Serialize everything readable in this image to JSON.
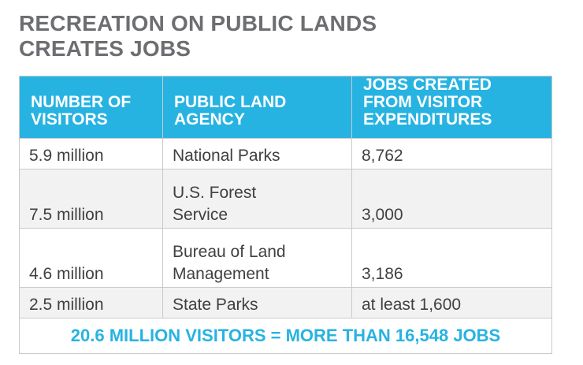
{
  "title": {
    "line1": "RECREATION ON PUBLIC LANDS",
    "line2": "CREATES JOBS"
  },
  "columns": [
    {
      "line1": "NUMBER OF",
      "line2": "VISITORS"
    },
    {
      "line1": "PUBLIC LAND",
      "line2": "AGENCY"
    },
    {
      "line1": "JOBS CREATED",
      "line2": "FROM VISITOR",
      "line3": "EXPENDITURES"
    }
  ],
  "rows": [
    {
      "visitors": "5.9 million",
      "agency": [
        "National Parks"
      ],
      "jobs": "8,762"
    },
    {
      "visitors": "7.5 million",
      "agency": [
        "U.S. Forest",
        "Service"
      ],
      "jobs": "3,000"
    },
    {
      "visitors": "4.6 million",
      "agency": [
        "Bureau of Land",
        "Management"
      ],
      "jobs": "3,186"
    },
    {
      "visitors": "2.5 million",
      "agency": [
        "State Parks"
      ],
      "jobs": "at least 1,600"
    }
  ],
  "total": "20.6 MILLION VISITORS = MORE THAN 16,548 JOBS",
  "colors": {
    "header_bg": "#27b3e2",
    "header_text": "#ffffff",
    "title_text": "#6d6e71",
    "body_text": "#404041",
    "alt_row_bg": "#f2f2f2",
    "total_text": "#27b3e2"
  }
}
